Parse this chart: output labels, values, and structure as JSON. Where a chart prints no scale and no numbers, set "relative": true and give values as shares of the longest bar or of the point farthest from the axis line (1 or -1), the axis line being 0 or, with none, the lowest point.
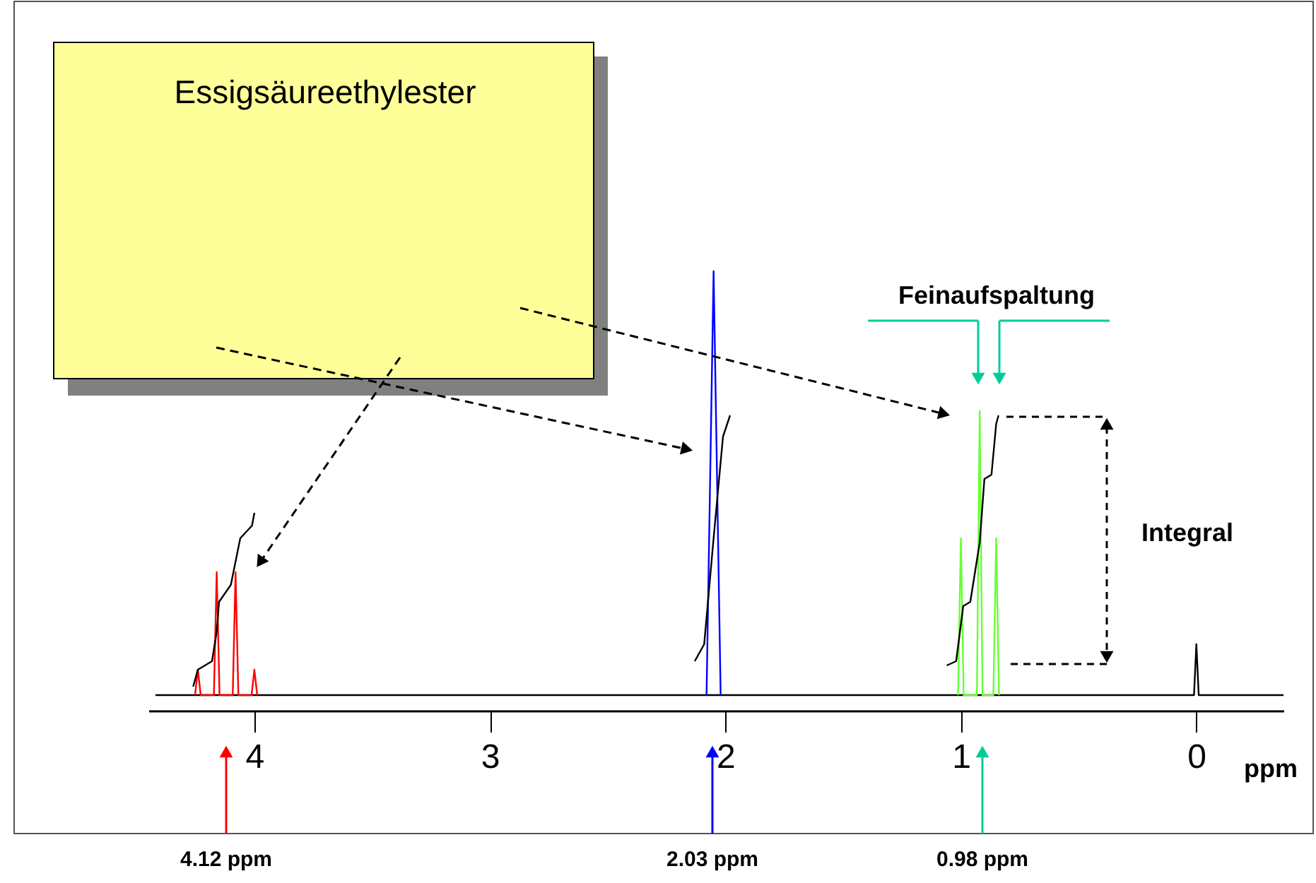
{
  "chart_data": {
    "type": "line",
    "relative": true,
    "title": "Essigsäureethylester",
    "xlabel": "ppm",
    "xlim": [
      4.45,
      -0.37
    ],
    "xticks": [
      4,
      3,
      2,
      1,
      0
    ],
    "annotations": [
      "Feinaufspaltung",
      "Integral",
      "4.12 ppm",
      "2.03 ppm",
      "0.98 ppm"
    ],
    "series": [
      {
        "color": "#000000",
        "x": [
          4.42,
          0.02,
          0.01,
          0.0,
          -0.01,
          -0.02,
          -0.37
        ],
        "values": [
          0,
          0,
          0,
          0.12,
          0,
          0,
          0
        ]
      },
      {
        "color": "#ff0000",
        "x": [
          4.252,
          4.24,
          4.228,
          4.172,
          4.16,
          4.148,
          4.092,
          4.08,
          4.068,
          4.012,
          4.0,
          3.988
        ],
        "values": [
          0,
          0.06,
          0,
          0,
          0.29,
          0,
          0,
          0.29,
          0,
          0,
          0.06,
          0
        ]
      },
      {
        "color": "#0000ff",
        "x": [
          2.08,
          2.05,
          2.02
        ],
        "values": [
          0,
          1.0,
          0
        ]
      },
      {
        "color": "#66ff33",
        "x": [
          1.012,
          1.0,
          0.988,
          0.932,
          0.92,
          0.908,
          0.862,
          0.85,
          0.838
        ],
        "values": [
          0,
          0.37,
          0,
          0,
          0.67,
          0,
          0,
          0.37,
          0
        ]
      },
      {
        "color": "#000000",
        "x": [
          4.26,
          4.24,
          4.18,
          4.16,
          4.15,
          4.1,
          4.06,
          4.01,
          4.0
        ],
        "values": [
          0.02,
          0.06,
          0.08,
          0.15,
          0.22,
          0.26,
          0.37,
          0.4,
          0.43
        ]
      },
      {
        "color": "#000000",
        "x": [
          2.13,
          2.09,
          2.05,
          2.01,
          1.98
        ],
        "values": [
          0.08,
          0.12,
          0.37,
          0.61,
          0.66
        ]
      },
      {
        "color": "#000000",
        "x": [
          1.06,
          1.02,
          0.99,
          0.96,
          0.92,
          0.9,
          0.87,
          0.85,
          0.84
        ],
        "values": [
          0.07,
          0.08,
          0.21,
          0.22,
          0.36,
          0.51,
          0.52,
          0.64,
          0.66
        ]
      }
    ]
  }
}
